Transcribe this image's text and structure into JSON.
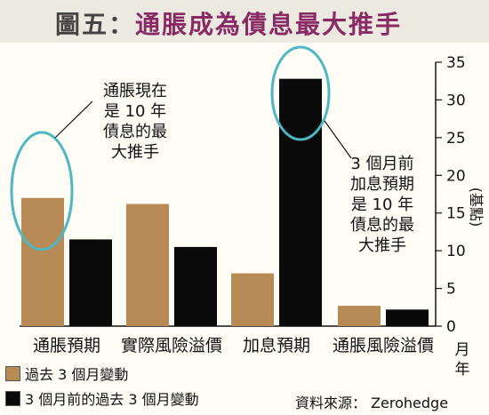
{
  "title": {
    "prefix": "圖五：",
    "main": "通脹成為債息最大推手"
  },
  "chart_data": {
    "type": "bar",
    "categories": [
      "通脹預期",
      "實際風險溢價",
      "加息預期",
      "通脹風險溢價"
    ],
    "series": [
      {
        "name": "過去 3 個月變動",
        "color": "#b88a56",
        "values": [
          17.0,
          16.2,
          7.0,
          2.7
        ]
      },
      {
        "name": "3 個月前的過去 3 個月變動",
        "color": "#0a0a0a",
        "values": [
          11.5,
          10.5,
          32.8,
          2.2
        ]
      }
    ],
    "ylim": [
      0,
      35
    ],
    "yticks": [
      0,
      5,
      10,
      15,
      20,
      25,
      30,
      35
    ],
    "ylabel": "(基點)",
    "xlabel": "月年",
    "grid": false,
    "legend_position": "bottom-left",
    "annotations": [
      {
        "id": "left",
        "lines": [
          "通脹現在",
          "是 10 年",
          "債息的最",
          "大推手"
        ]
      },
      {
        "id": "right",
        "lines": [
          "3 個月前",
          "加息預期",
          "是 10 年",
          "債息的最",
          "大推手"
        ]
      }
    ],
    "highlight_color": "#4db8c4",
    "source": "資料來源： Zerohedge"
  }
}
